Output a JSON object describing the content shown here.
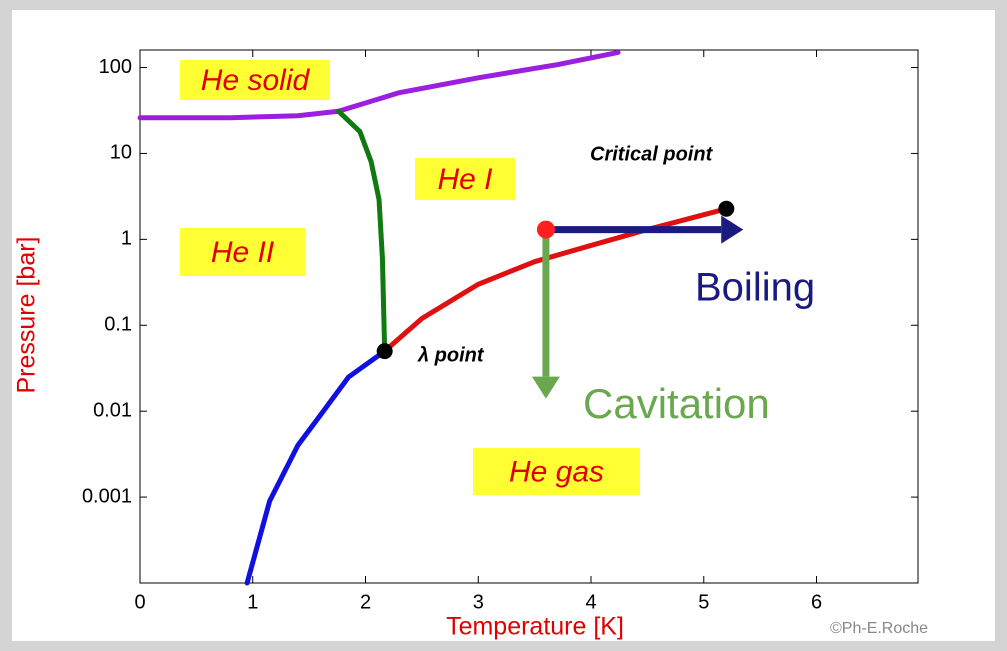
{
  "chart_data": {
    "type": "line",
    "xlabel": "Temperature  [K]",
    "ylabel": "Pressure  [bar]",
    "xlim": [
      0,
      6.9
    ],
    "xticks": [
      0,
      1,
      2,
      3,
      4,
      5,
      6
    ],
    "ylim": [
      0.0001,
      160
    ],
    "ylog": true,
    "yticks": [
      100,
      10,
      1,
      0.1,
      0.01,
      0.001
    ],
    "grid": false,
    "series": [
      {
        "color": "#9a1fe0",
        "x": [
          0,
          0.8,
          1.4,
          1.76,
          2.3,
          3.0,
          3.7,
          4.24
        ],
        "values": [
          26,
          26,
          27.5,
          31,
          51,
          76,
          108,
          150
        ]
      },
      {
        "color": "#107a10",
        "x": [
          1.76,
          1.95,
          2.05,
          2.12,
          2.15,
          2.17
        ],
        "values": [
          31,
          18,
          8,
          2.9,
          0.6,
          0.05
        ]
      },
      {
        "color": "#e01010",
        "x": [
          2.17,
          2.5,
          3.0,
          3.5,
          4.0,
          4.5,
          5.2
        ],
        "values": [
          0.05,
          0.12,
          0.3,
          0.55,
          0.85,
          1.3,
          2.27
        ]
      },
      {
        "color": "#1010e0",
        "x": [
          0.95,
          1.15,
          1.4,
          1.6,
          1.85,
          2.17
        ],
        "values": [
          0.0001,
          0.0009,
          0.004,
          0.009,
          0.025,
          0.05
        ]
      }
    ],
    "regions": [
      "He solid",
      "He I",
      "He II",
      "He gas"
    ],
    "critical_point": {
      "label": "Critical point",
      "x": 5.2,
      "y": 2.27
    },
    "lambda_point": {
      "label": "λ point",
      "x": 2.17,
      "y": 0.05
    },
    "state_point": {
      "x": 3.6,
      "y": 1.3
    },
    "arrows": [
      {
        "text": "Boiling",
        "color": "#1a1a80",
        "x": 5.35,
        "y": 1.3
      },
      {
        "text": "Cavitation",
        "color": "#6aa84f",
        "x": 3.6,
        "y": 0.014
      }
    ],
    "credit": "©Ph-E.Roche"
  }
}
